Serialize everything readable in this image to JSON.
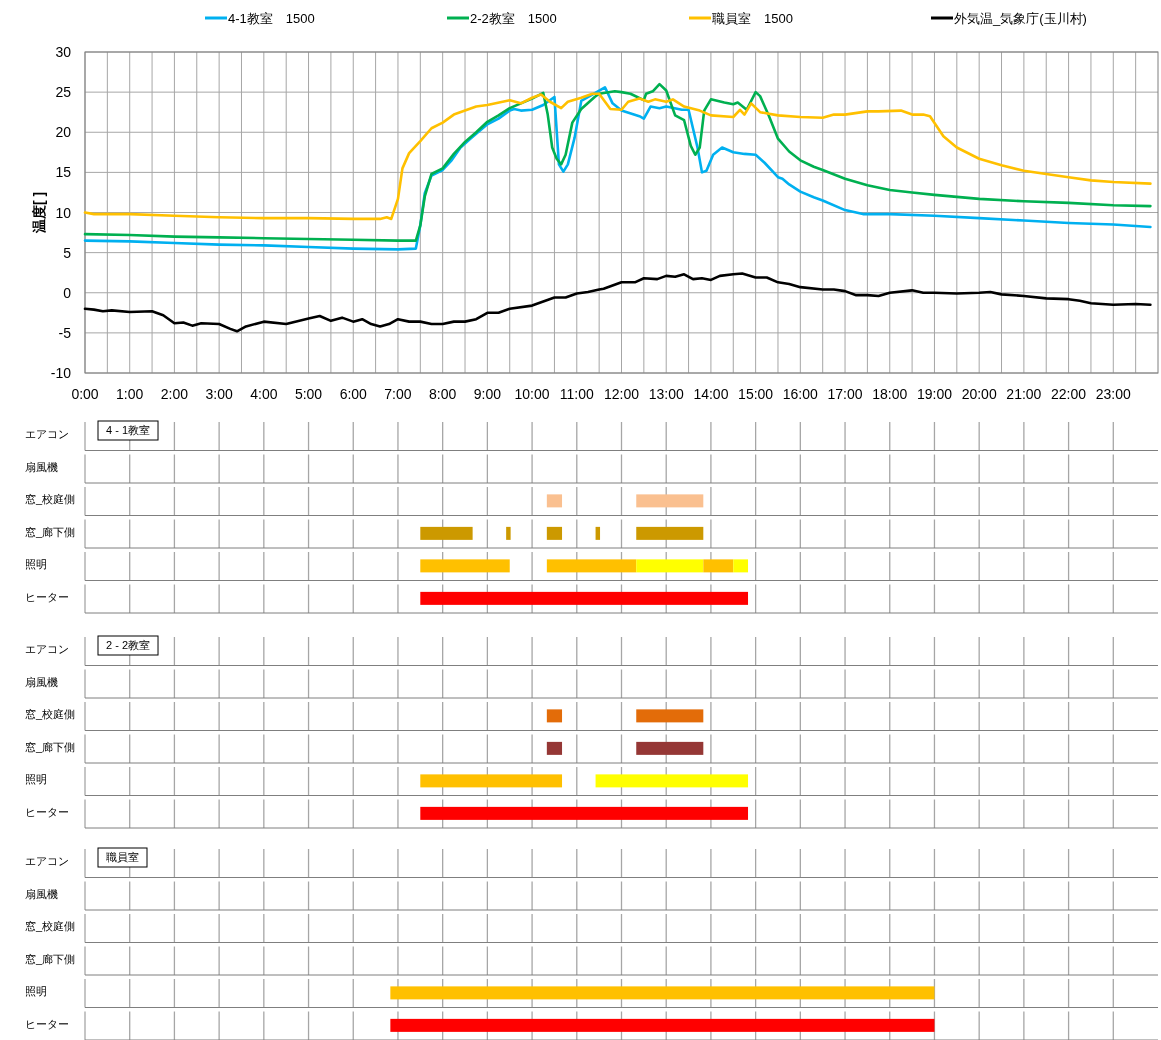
{
  "chart_data": [
    {
      "type": "line",
      "ylabel": "温度[ ]",
      "legend": "top",
      "grid": true,
      "xlim": [
        0,
        24
      ],
      "ylim": [
        -10,
        30
      ],
      "yticks": [
        -10,
        -5,
        0,
        5,
        10,
        15,
        20,
        25,
        30
      ],
      "xticks": [
        {
          "value": 0,
          "label": "0:00"
        },
        {
          "value": 0.5,
          "label": null
        },
        {
          "value": 1,
          "label": "1:00"
        },
        {
          "value": 1.5,
          "label": null
        },
        {
          "value": 2,
          "label": "2:00"
        },
        {
          "value": 2.5,
          "label": null
        },
        {
          "value": 3,
          "label": "3:00"
        },
        {
          "value": 3.5,
          "label": null
        },
        {
          "value": 4,
          "label": "4:00"
        },
        {
          "value": 4.5,
          "label": null
        },
        {
          "value": 5,
          "label": "5:00"
        },
        {
          "value": 5.5,
          "label": null
        },
        {
          "value": 6,
          "label": "6:00"
        },
        {
          "value": 6.5,
          "label": null
        },
        {
          "value": 7,
          "label": "7:00"
        },
        {
          "value": 7.5,
          "label": null
        },
        {
          "value": 8,
          "label": "8:00"
        },
        {
          "value": 8.5,
          "label": null
        },
        {
          "value": 9,
          "label": "9:00"
        },
        {
          "value": 9.5,
          "label": null
        },
        {
          "value": 10,
          "label": "10:00"
        },
        {
          "value": 10.5,
          "label": null
        },
        {
          "value": 11,
          "label": "11:00"
        },
        {
          "value": 11.5,
          "label": null
        },
        {
          "value": 12,
          "label": "12:00"
        },
        {
          "value": 12.5,
          "label": null
        },
        {
          "value": 13,
          "label": "13:00"
        },
        {
          "value": 13.5,
          "label": null
        },
        {
          "value": 14,
          "label": "14:00"
        },
        {
          "value": 14.5,
          "label": null
        },
        {
          "value": 15,
          "label": "15:00"
        },
        {
          "value": 15.5,
          "label": null
        },
        {
          "value": 16,
          "label": "16:00"
        },
        {
          "value": 16.5,
          "label": null
        },
        {
          "value": 17,
          "label": "17:00"
        },
        {
          "value": 17.5,
          "label": null
        },
        {
          "value": 18,
          "label": "18:00"
        },
        {
          "value": 18.5,
          "label": null
        },
        {
          "value": 19,
          "label": "19:00"
        },
        {
          "value": 19.5,
          "label": null
        },
        {
          "value": 20,
          "label": "20:00"
        },
        {
          "value": 20.5,
          "label": null
        },
        {
          "value": 21,
          "label": "21:00"
        },
        {
          "value": 21.5,
          "label": null
        },
        {
          "value": 22,
          "label": "22:00"
        },
        {
          "value": 22.5,
          "label": null
        },
        {
          "value": 23,
          "label": "23:00"
        },
        {
          "value": 23.5,
          "label": null
        }
      ],
      "series": [
        {
          "name": "4-1教室　1500",
          "color": "#00b0f0",
          "x": [
            0,
            1,
            2,
            3,
            4,
            5,
            6,
            7,
            7.4,
            7.5,
            7.6,
            7.75,
            8,
            8.2,
            8.4,
            8.6,
            8.75,
            9,
            9.25,
            9.5,
            9.6,
            9.75,
            10,
            10.25,
            10.5,
            10.6,
            10.7,
            10.8,
            10.95,
            11.1,
            11.63,
            11.8,
            12,
            12.4,
            12.5,
            12.65,
            12.85,
            13,
            13.35,
            13.5,
            13.7,
            13.8,
            13.9,
            14.05,
            14.25,
            14.5,
            14.75,
            15,
            15.2,
            15.5,
            15.6,
            15.75,
            16,
            16.3,
            16.5,
            17,
            17.4,
            18,
            19,
            20,
            21,
            22,
            23,
            23.83
          ],
          "values": [
            6.5,
            6.4,
            6.2,
            6.0,
            5.9,
            5.7,
            5.5,
            5.4,
            5.5,
            8.4,
            12.4,
            14.6,
            15.3,
            16.5,
            18.1,
            19.1,
            19.8,
            21.0,
            21.7,
            22.7,
            22.9,
            22.7,
            22.8,
            23.4,
            24.4,
            16.0,
            15.1,
            16.0,
            19.3,
            23.9,
            25.6,
            23.6,
            22.7,
            22.0,
            21.7,
            23.2,
            23.0,
            23.2,
            22.8,
            22.8,
            18.1,
            15.0,
            15.2,
            17.2,
            18.1,
            17.5,
            17.3,
            17.2,
            16.2,
            14.4,
            14.2,
            13.5,
            12.6,
            11.9,
            11.5,
            10.3,
            9.8,
            9.8,
            9.6,
            9.3,
            9.0,
            8.7,
            8.5,
            8.2
          ]
        },
        {
          "name": "2-2教室　1500",
          "color": "#00b050",
          "x": [
            0,
            1,
            2,
            3,
            4,
            5,
            6,
            7,
            7.4,
            7.5,
            7.6,
            7.75,
            8,
            8.25,
            8.5,
            8.75,
            9,
            9.25,
            9.5,
            9.75,
            10,
            10.25,
            10.35,
            10.45,
            10.55,
            10.65,
            10.75,
            10.9,
            11.1,
            11.4,
            11.5,
            11.85,
            12,
            12.2,
            12.5,
            12.55,
            12.7,
            12.85,
            13,
            13.2,
            13.4,
            13.55,
            13.65,
            13.75,
            13.85,
            14,
            14.3,
            14.5,
            14.6,
            14.8,
            15,
            15.1,
            15.3,
            15.5,
            15.75,
            16,
            16.3,
            16.5,
            17,
            17.5,
            18,
            18.5,
            19,
            20,
            21,
            22,
            23,
            23.83
          ],
          "values": [
            7.3,
            7.2,
            7.0,
            6.9,
            6.8,
            6.7,
            6.6,
            6.5,
            6.5,
            8.4,
            12.0,
            14.8,
            15.5,
            17.3,
            18.8,
            20.0,
            21.3,
            22.1,
            23.0,
            23.6,
            24.2,
            24.9,
            22.2,
            18.1,
            16.7,
            16.0,
            17.2,
            21.2,
            22.9,
            24.4,
            24.8,
            25.1,
            25.0,
            24.8,
            24.0,
            24.8,
            25.1,
            26.0,
            25.2,
            22.1,
            21.5,
            18.3,
            17.2,
            18.1,
            22.7,
            24.1,
            23.7,
            23.5,
            23.7,
            22.8,
            25.0,
            24.5,
            22.0,
            19.2,
            17.6,
            16.5,
            15.7,
            15.3,
            14.2,
            13.4,
            12.8,
            12.5,
            12.2,
            11.7,
            11.4,
            11.2,
            10.9,
            10.8
          ]
        },
        {
          "name": "職員室　1500",
          "color": "#ffc000",
          "x": [
            0,
            0.2,
            1,
            2,
            3,
            4,
            5,
            6,
            6.6,
            6.75,
            6.85,
            7.0,
            7.1,
            7.25,
            7.5,
            7.75,
            8,
            8.25,
            8.5,
            8.75,
            9,
            9.5,
            9.75,
            10,
            10.2,
            10.4,
            10.65,
            10.8,
            11.1,
            11.35,
            11.5,
            11.75,
            12,
            12.15,
            12.4,
            12.6,
            12.75,
            13,
            13.15,
            13.4,
            13.75,
            14,
            14.5,
            14.65,
            14.75,
            14.9,
            15.1,
            15.5,
            16,
            16.5,
            16.75,
            17,
            17.5,
            17.75,
            18.25,
            18.5,
            18.75,
            18.9,
            19.2,
            19.5,
            20,
            20.5,
            21,
            21.5,
            22,
            22.5,
            23,
            23.83
          ],
          "values": [
            10.0,
            9.8,
            9.8,
            9.6,
            9.4,
            9.3,
            9.3,
            9.2,
            9.2,
            9.4,
            9.2,
            11.7,
            15.5,
            17.4,
            18.9,
            20.5,
            21.2,
            22.2,
            22.7,
            23.2,
            23.4,
            24.0,
            23.6,
            24.3,
            24.7,
            23.8,
            23.0,
            23.8,
            24.3,
            24.8,
            24.8,
            22.9,
            22.8,
            23.8,
            24.2,
            23.8,
            24.1,
            23.8,
            24.1,
            23.2,
            22.7,
            22.1,
            21.9,
            22.8,
            22.2,
            23.6,
            22.5,
            22.1,
            21.9,
            21.8,
            22.2,
            22.2,
            22.6,
            22.6,
            22.7,
            22.2,
            22.2,
            22.0,
            19.5,
            18.1,
            16.7,
            15.9,
            15.2,
            14.8,
            14.4,
            14.0,
            13.8,
            13.6
          ]
        },
        {
          "name": "外気温_気象庁(玉川村)",
          "color": "#000000",
          "x": [
            0,
            0.2,
            0.4,
            0.6,
            1,
            1.5,
            1.75,
            2,
            2.2,
            2.4,
            2.6,
            3,
            3.25,
            3.4,
            3.6,
            4,
            4.5,
            5,
            5.25,
            5.5,
            5.75,
            6,
            6.2,
            6.4,
            6.6,
            6.8,
            7,
            7.25,
            7.5,
            7.75,
            8,
            8.25,
            8.5,
            8.75,
            9,
            9.25,
            9.5,
            10,
            10.25,
            10.5,
            10.75,
            11,
            11.25,
            11.5,
            11.6,
            11.8,
            12,
            12.3,
            12.5,
            12.8,
            13,
            13.2,
            13.4,
            13.6,
            13.8,
            14,
            14.2,
            14.5,
            14.7,
            15,
            15.25,
            15.5,
            15.75,
            16,
            16.5,
            16.75,
            17,
            17.25,
            17.5,
            17.75,
            18,
            18.5,
            18.75,
            19,
            19.5,
            20,
            20.25,
            20.5,
            21,
            21.5,
            22,
            22.25,
            22.5,
            23,
            23.5,
            23.83
          ],
          "values": [
            -2.0,
            -2.1,
            -2.3,
            -2.2,
            -2.4,
            -2.3,
            -2.8,
            -3.8,
            -3.7,
            -4.1,
            -3.8,
            -3.9,
            -4.5,
            -4.8,
            -4.2,
            -3.6,
            -3.9,
            -3.2,
            -2.9,
            -3.5,
            -3.1,
            -3.6,
            -3.3,
            -3.9,
            -4.2,
            -3.9,
            -3.3,
            -3.6,
            -3.6,
            -3.9,
            -3.9,
            -3.6,
            -3.6,
            -3.3,
            -2.5,
            -2.5,
            -2.0,
            -1.6,
            -1.1,
            -0.6,
            -0.6,
            -0.1,
            0.1,
            0.4,
            0.5,
            0.9,
            1.3,
            1.3,
            1.8,
            1.7,
            2.1,
            2.0,
            2.3,
            1.7,
            1.8,
            1.6,
            2.1,
            2.3,
            2.4,
            1.9,
            1.9,
            1.3,
            1.1,
            0.7,
            0.4,
            0.4,
            0.2,
            -0.3,
            -0.3,
            -0.4,
            0.0,
            0.3,
            0.0,
            0.0,
            -0.1,
            0.0,
            0.1,
            -0.2,
            -0.4,
            -0.7,
            -0.8,
            -1.0,
            -1.3,
            -1.5,
            -1.4,
            -1.5
          ]
        }
      ]
    },
    {
      "type": "bar",
      "orientation": "horizontal",
      "title": "4 - 1教室",
      "tick_labels": "y",
      "grid": "x",
      "xlim": [
        0,
        24
      ],
      "xticks": [
        0,
        1,
        2,
        3,
        4,
        5,
        6,
        7,
        8,
        9,
        10,
        11,
        12,
        13,
        14,
        15,
        16,
        17,
        18,
        19,
        20,
        21,
        22,
        23
      ],
      "categories": [
        "エアコン",
        "扇風機",
        "窓_校庭側",
        "窓_廊下側",
        "照明",
        "ヒーター"
      ],
      "series": [
        {
          "color": "#fac090",
          "base": [
            null,
            null,
            10.33,
            null,
            null,
            null
          ],
          "values": [
            null,
            null,
            0.34,
            null,
            null,
            null
          ]
        },
        {
          "color": "#fac090",
          "base": [
            null,
            null,
            12.33,
            null,
            null,
            null
          ],
          "values": [
            null,
            null,
            1.5,
            null,
            null,
            null
          ]
        },
        {
          "color": "#cc9900",
          "base": [
            null,
            null,
            null,
            7.5,
            null,
            null
          ],
          "values": [
            null,
            null,
            null,
            1.17,
            null,
            null
          ]
        },
        {
          "color": "#cc9900",
          "base": [
            null,
            null,
            null,
            9.42,
            null,
            null
          ],
          "values": [
            null,
            null,
            null,
            0.1,
            null,
            null
          ]
        },
        {
          "color": "#cc9900",
          "base": [
            null,
            null,
            null,
            10.33,
            null,
            null
          ],
          "values": [
            null,
            null,
            null,
            0.34,
            null,
            null
          ]
        },
        {
          "color": "#cc9900",
          "base": [
            null,
            null,
            null,
            11.42,
            null,
            null
          ],
          "values": [
            null,
            null,
            null,
            0.1,
            null,
            null
          ]
        },
        {
          "color": "#cc9900",
          "base": [
            null,
            null,
            null,
            12.33,
            null,
            null
          ],
          "values": [
            null,
            null,
            null,
            1.5,
            null,
            null
          ]
        },
        {
          "color": "#ffc000",
          "base": [
            null,
            null,
            null,
            null,
            7.5,
            null
          ],
          "values": [
            null,
            null,
            null,
            null,
            2.0,
            null
          ]
        },
        {
          "color": "#ffc000",
          "base": [
            null,
            null,
            null,
            null,
            10.33,
            null
          ],
          "values": [
            null,
            null,
            null,
            null,
            2.0,
            null
          ]
        },
        {
          "color": "#ffff00",
          "base": [
            null,
            null,
            null,
            null,
            12.33,
            null
          ],
          "values": [
            null,
            null,
            null,
            null,
            1.5,
            null
          ]
        },
        {
          "color": "#ffc000",
          "base": [
            null,
            null,
            null,
            null,
            13.83,
            null
          ],
          "values": [
            null,
            null,
            null,
            null,
            0.67,
            null
          ]
        },
        {
          "color": "#ffff00",
          "base": [
            null,
            null,
            null,
            null,
            14.5,
            null
          ],
          "values": [
            null,
            null,
            null,
            null,
            0.33,
            null
          ]
        },
        {
          "color": "#ff0000",
          "base": [
            null,
            null,
            null,
            null,
            null,
            7.5
          ],
          "values": [
            null,
            null,
            null,
            null,
            null,
            7.33
          ]
        }
      ]
    },
    {
      "type": "bar",
      "orientation": "horizontal",
      "title": "2 - 2教室",
      "tick_labels": "y",
      "grid": "x",
      "xlim": [
        0,
        24
      ],
      "xticks": [
        0,
        1,
        2,
        3,
        4,
        5,
        6,
        7,
        8,
        9,
        10,
        11,
        12,
        13,
        14,
        15,
        16,
        17,
        18,
        19,
        20,
        21,
        22,
        23
      ],
      "categories": [
        "エアコン",
        "扇風機",
        "窓_校庭側",
        "窓_廊下側",
        "照明",
        "ヒーター"
      ],
      "series": [
        {
          "color": "#e36c09",
          "base": [
            null,
            null,
            10.33,
            null,
            null,
            null
          ],
          "values": [
            null,
            null,
            0.34,
            null,
            null,
            null
          ]
        },
        {
          "color": "#e36c09",
          "base": [
            null,
            null,
            12.33,
            null,
            null,
            null
          ],
          "values": [
            null,
            null,
            1.5,
            null,
            null,
            null
          ]
        },
        {
          "color": "#953735",
          "base": [
            null,
            null,
            null,
            10.33,
            null,
            null
          ],
          "values": [
            null,
            null,
            null,
            0.34,
            null,
            null
          ]
        },
        {
          "color": "#953735",
          "base": [
            null,
            null,
            null,
            12.33,
            null,
            null
          ],
          "values": [
            null,
            null,
            null,
            1.5,
            null,
            null
          ]
        },
        {
          "color": "#ffc000",
          "base": [
            null,
            null,
            null,
            null,
            7.5,
            null
          ],
          "values": [
            null,
            null,
            null,
            null,
            3.17,
            null
          ]
        },
        {
          "color": "#ffff00",
          "base": [
            null,
            null,
            null,
            null,
            11.42,
            null
          ],
          "values": [
            null,
            null,
            null,
            null,
            3.41,
            null
          ]
        },
        {
          "color": "#ff0000",
          "base": [
            null,
            null,
            null,
            null,
            null,
            7.5
          ],
          "values": [
            null,
            null,
            null,
            null,
            null,
            7.33
          ]
        }
      ]
    },
    {
      "type": "bar",
      "orientation": "horizontal",
      "title": "職員室",
      "tick_labels": "y",
      "grid": "x",
      "xlim": [
        0,
        24
      ],
      "xticks": [
        0,
        1,
        2,
        3,
        4,
        5,
        6,
        7,
        8,
        9,
        10,
        11,
        12,
        13,
        14,
        15,
        16,
        17,
        18,
        19,
        20,
        21,
        22,
        23
      ],
      "categories": [
        "エアコン",
        "扇風機",
        "窓_校庭側",
        "窓_廊下側",
        "照明",
        "ヒーター"
      ],
      "series": [
        {
          "color": "#ffc000",
          "base": [
            null,
            null,
            null,
            null,
            6.83,
            null
          ],
          "values": [
            null,
            null,
            null,
            null,
            12.17,
            null
          ]
        },
        {
          "color": "#ff0000",
          "base": [
            null,
            null,
            null,
            null,
            null,
            6.83
          ],
          "values": [
            null,
            null,
            null,
            null,
            null,
            12.17
          ]
        }
      ]
    }
  ]
}
